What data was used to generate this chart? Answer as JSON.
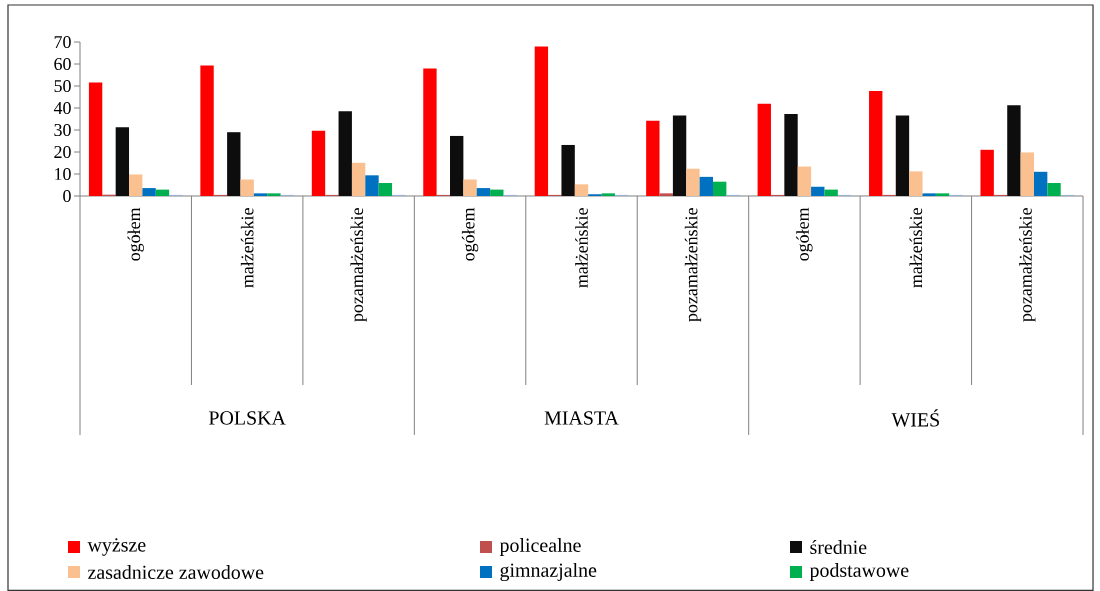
{
  "chart_data": {
    "type": "bar",
    "categories": [
      "ogółem",
      "małżeńskie",
      "pozamałżeńskie",
      "ogółem",
      "małżeńskie",
      "pozamałżeńskie",
      "ogółem",
      "małżeńskie",
      "pozamałżeńskie"
    ],
    "series": [
      {
        "name": "wyższe",
        "color": "#ff0000",
        "values": [
          51.6,
          59.3,
          29.7,
          58,
          68,
          34.2,
          41.9,
          47.7,
          21
        ]
      },
      {
        "name": "policealne",
        "color": "#c0504d",
        "values": [
          0.6,
          0.5,
          0.5,
          0.5,
          0.5,
          1.2,
          0.5,
          0.5,
          0.5
        ]
      },
      {
        "name": "średnie",
        "color": "#0d0d0d",
        "values": [
          31.2,
          29,
          38.5,
          27.3,
          23.2,
          36.6,
          37.3,
          36.6,
          41.3
        ]
      },
      {
        "name": "zasadnicze zawodowe",
        "color": "#fac090",
        "values": [
          9.8,
          7.5,
          15.1,
          7.5,
          5.3,
          12.4,
          13.4,
          11.2,
          19.8
        ]
      },
      {
        "name": "gimnazjalne",
        "color": "#0070c0",
        "values": [
          3.6,
          1.2,
          9.4,
          3.6,
          0.8,
          8.7,
          4.2,
          1.2,
          11
        ]
      },
      {
        "name": "podstawowe",
        "color": "#00b050",
        "values": [
          2.9,
          1.2,
          5.9,
          2.9,
          1.2,
          6.5,
          2.9,
          1.2,
          5.9
        ]
      },
      {
        "color": "#95b3d7",
        "values": [
          0.5,
          0.5,
          0.5,
          0.5,
          0.5,
          0.5,
          0.5,
          0.5,
          0.5
        ]
      }
    ],
    "annotations": [
      "POLSKA",
      "MIASTA",
      "WIEŚ"
    ],
    "ylim": [
      0,
      70
    ],
    "yticks": [
      0,
      10,
      20,
      30,
      40,
      50,
      60,
      70
    ],
    "grid": false,
    "legend": "bottom"
  }
}
